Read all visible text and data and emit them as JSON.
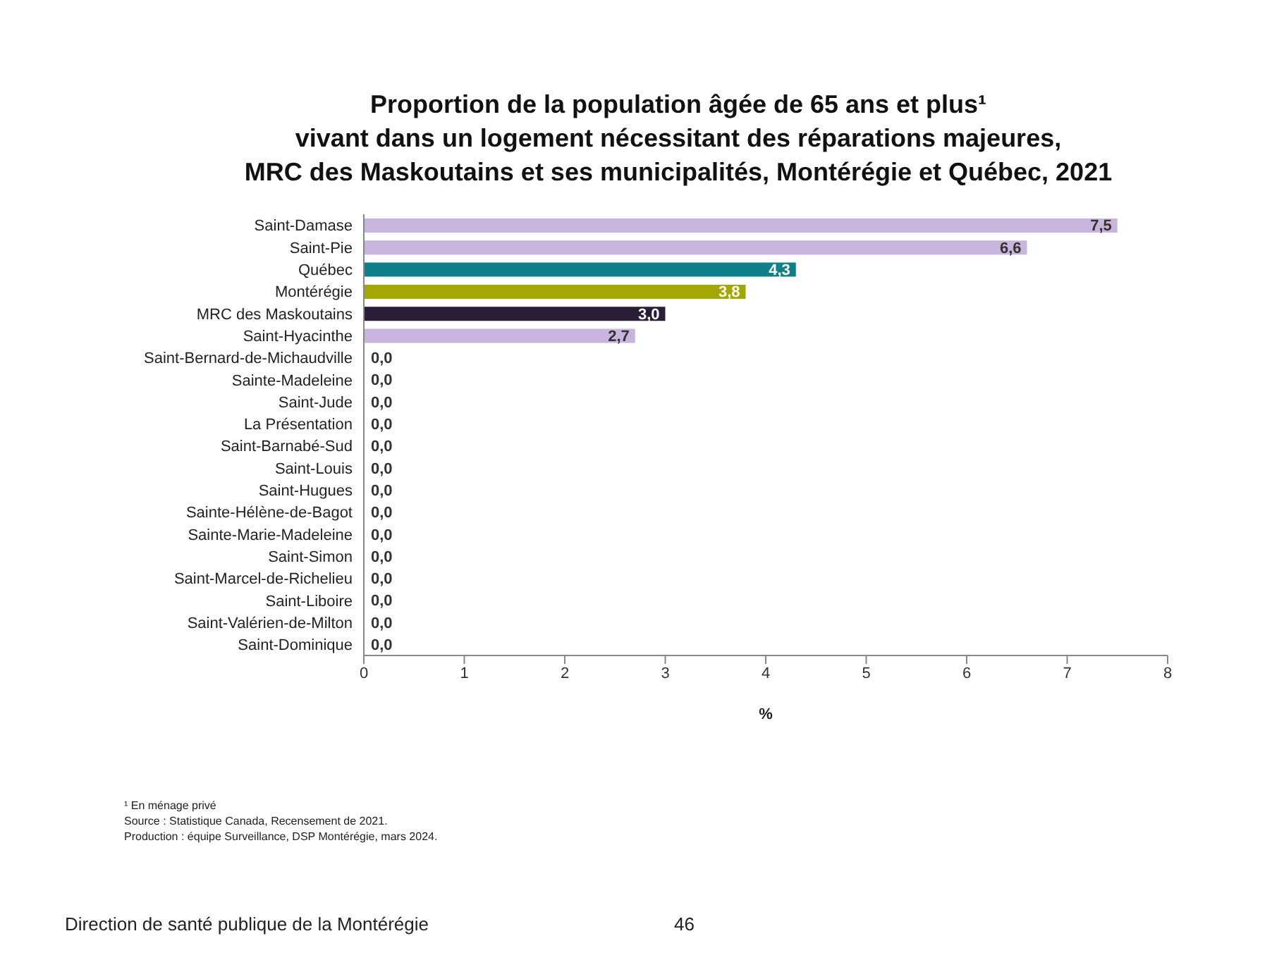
{
  "chart_data": {
    "type": "bar",
    "orientation": "horizontal",
    "title": "Proportion de la population âgée de 65 ans et plus¹\nvivant dans un logement nécessitant des réparations majeures,\nMRC des Maskoutains et ses municipalités, Montérégie et Québec, 2021",
    "categories": [
      "Saint-Damase",
      "Saint-Pie",
      "Québec",
      "Montérégie",
      "MRC des Maskoutains",
      "Saint-Hyacinthe",
      "Saint-Bernard-de-Michaudville",
      "Sainte-Madeleine",
      "Saint-Jude",
      "La Présentation",
      "Saint-Barnabé-Sud",
      "Saint-Louis",
      "Saint-Hugues",
      "Sainte-Hélène-de-Bagot",
      "Sainte-Marie-Madeleine",
      "Saint-Simon",
      "Saint-Marcel-de-Richelieu",
      "Saint-Liboire",
      "Saint-Valérien-de-Milton",
      "Saint-Dominique"
    ],
    "values": [
      7.5,
      6.6,
      4.3,
      3.8,
      3.0,
      2.7,
      0,
      0,
      0,
      0,
      0,
      0,
      0,
      0,
      0,
      0,
      0,
      0,
      0,
      0
    ],
    "value_labels": [
      "7,5",
      "6,6",
      "4,3",
      "3,8",
      "3,0",
      "2,7",
      "0,0",
      "0,0",
      "0,0",
      "0,0",
      "0,0",
      "0,0",
      "0,0",
      "0,0",
      "0,0",
      "0,0",
      "0,0",
      "0,0",
      "0,0",
      "0,0"
    ],
    "colors": [
      "#c8b4dc",
      "#c8b4dc",
      "#0f8088",
      "#a3a800",
      "#2a1d38",
      "#c8b4dc",
      "#c8b4dc",
      "#c8b4dc",
      "#c8b4dc",
      "#c8b4dc",
      "#c8b4dc",
      "#c8b4dc",
      "#c8b4dc",
      "#c8b4dc",
      "#c8b4dc",
      "#c8b4dc",
      "#c8b4dc",
      "#c8b4dc",
      "#c8b4dc",
      "#c8b4dc"
    ],
    "xlabel": "%",
    "xlim": [
      0,
      8
    ],
    "xticks": [
      0,
      1,
      2,
      3,
      4,
      5,
      6,
      7,
      8
    ],
    "grid": false,
    "legend": false,
    "annotations": [
      "¹ En ménage privé",
      "Source : Statistique Canada, Recensement de 2021.",
      "Production : équipe Surveillance, DSP Montérégie, mars 2024.",
      "Direction de santé publique de la Montérégie",
      "46"
    ]
  }
}
